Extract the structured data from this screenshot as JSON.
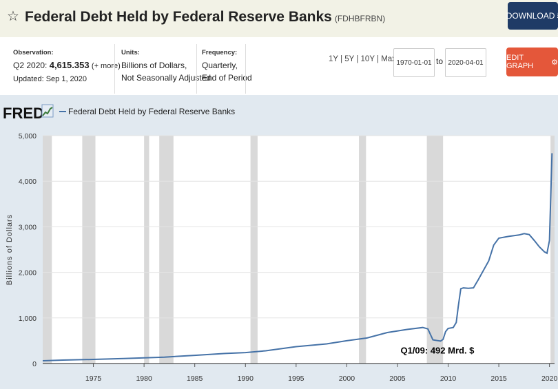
{
  "header": {
    "title": "Federal Debt Held by Federal Reserve Banks",
    "series_code": "(FDHBFRBN)",
    "download_label": "DOWNLOAD",
    "star_icon": "star-outline-icon",
    "download_icon": "download-arrow-icon"
  },
  "meta": {
    "observation_label": "Observation:",
    "observation_period": "Q2 2020:",
    "observation_value": "4,615.353",
    "more_link": "(+ more)",
    "updated": "Updated: Sep 1, 2020",
    "units_label": "Units:",
    "units_line1": "Billions of Dollars,",
    "units_line2": "Not Seasonally Adjusted",
    "frequency_label": "Frequency:",
    "frequency_line1": "Quarterly,",
    "frequency_line2": "End of Period"
  },
  "controls": {
    "range_1y": "1Y",
    "range_5y": "5Y",
    "range_10y": "10Y",
    "range_max": "Max",
    "range_sep": "|",
    "start_date": "1970-01-01",
    "to_label": "to",
    "end_date": "2020-04-01",
    "edit_label": "EDIT GRAPH",
    "edit_icon": "gear-icon"
  },
  "brand": {
    "fred_logo": "FRED",
    "logo_icon": "fred-chart-logo-icon"
  },
  "colors": {
    "line": "#4572a7",
    "recession": "#d9d9d9",
    "edit_button": "#e4573a",
    "download_button": "#1f3b66"
  },
  "chart_data": {
    "type": "line",
    "legend": "Federal Debt Held by Federal Reserve Banks",
    "ylabel": "Billions of Dollars",
    "xlim": [
      1970.0,
      2020.5
    ],
    "ylim": [
      0,
      5000
    ],
    "y_ticks": [
      0,
      1000,
      2000,
      3000,
      4000,
      5000
    ],
    "y_tick_labels": [
      "0",
      "1,000",
      "2,000",
      "3,000",
      "4,000",
      "5,000"
    ],
    "x_ticks": [
      1975,
      1980,
      1985,
      1990,
      1995,
      2000,
      2005,
      2010,
      2015,
      2020
    ],
    "x_tick_labels": [
      "1975",
      "1980",
      "1985",
      "1990",
      "1995",
      "2000",
      "2005",
      "2010",
      "2015",
      "2020"
    ],
    "grid": true,
    "recessions": [
      [
        1970.0,
        1970.9
      ],
      [
        1973.9,
        1975.2
      ],
      [
        1980.0,
        1980.5
      ],
      [
        1981.5,
        1982.9
      ],
      [
        1990.5,
        1991.2
      ],
      [
        2001.2,
        2001.9
      ],
      [
        2007.9,
        2009.5
      ],
      [
        2020.1,
        2020.5
      ]
    ],
    "annotation": {
      "text": "Q1/09: 492 Mrd. $",
      "x": 2009.25,
      "y": 492
    },
    "series": [
      {
        "name": "Federal Debt Held by Federal Reserve Banks",
        "x": [
          1970.0,
          1972.0,
          1975.0,
          1978.0,
          1980.0,
          1982.0,
          1985.0,
          1988.0,
          1990.0,
          1992.0,
          1995.0,
          1998.0,
          2000.0,
          2002.0,
          2004.0,
          2006.0,
          2007.5,
          2008.0,
          2008.5,
          2009.25,
          2009.5,
          2009.75,
          2010.0,
          2010.5,
          2010.8,
          2011.0,
          2011.25,
          2011.5,
          2012.0,
          2012.5,
          2013.0,
          2013.5,
          2014.0,
          2014.5,
          2015.0,
          2016.0,
          2017.0,
          2017.5,
          2018.0,
          2018.5,
          2019.0,
          2019.5,
          2019.75,
          2020.0,
          2020.25
        ],
        "values": [
          60,
          75,
          90,
          110,
          125,
          140,
          180,
          220,
          240,
          280,
          370,
          430,
          500,
          560,
          680,
          750,
          790,
          760,
          520,
          492,
          530,
          700,
          770,
          790,
          900,
          1250,
          1640,
          1660,
          1650,
          1660,
          1850,
          2050,
          2250,
          2600,
          2750,
          2790,
          2820,
          2850,
          2830,
          2700,
          2560,
          2450,
          2420,
          2700,
          4615
        ]
      }
    ]
  }
}
